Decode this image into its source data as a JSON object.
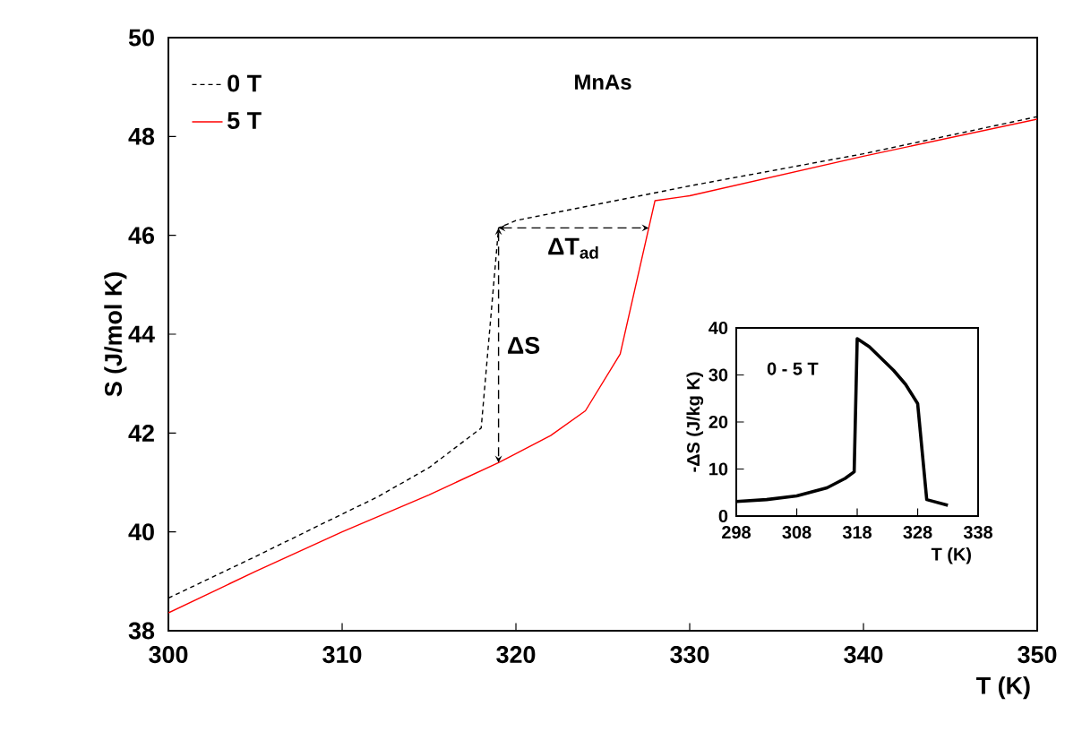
{
  "chart_data": [
    {
      "type": "line",
      "title": "MnAs",
      "xlabel": "T (K)",
      "ylabel": "S (J/mol K)",
      "xlim": [
        300,
        350
      ],
      "xticks": [
        300,
        310,
        320,
        330,
        340,
        350
      ],
      "ylim": [
        38,
        50
      ],
      "yticks": [
        38,
        40,
        42,
        44,
        46,
        48,
        50
      ],
      "legend": "top left",
      "grid": false,
      "marker": "none",
      "series": [
        {
          "name": "0 T",
          "color": "#000000",
          "line_style": "dashed",
          "x": [
            300,
            305,
            310,
            312,
            315,
            318,
            319,
            320,
            330,
            340,
            350
          ],
          "values": [
            38.66,
            39.5,
            40.36,
            40.7,
            41.3,
            42.1,
            46.15,
            46.3,
            47.0,
            47.65,
            48.4
          ]
        },
        {
          "name": "5 T",
          "color": "#ff0000",
          "line_style": "solid",
          "x": [
            300,
            305,
            310,
            315,
            319,
            322,
            324,
            326,
            327,
            328,
            330,
            340,
            350
          ],
          "values": [
            38.36,
            39.2,
            40.0,
            40.75,
            41.4,
            41.95,
            42.45,
            43.6,
            45.15,
            46.7,
            46.8,
            47.6,
            48.35
          ]
        }
      ],
      "annotations": [
        "ΔS",
        "ΔT$_{ad}$"
      ]
    },
    {
      "type": "line",
      "xlabel": "T (K)",
      "ylabel": "-ΔS (J/kg K)",
      "xlim": [
        298,
        338
      ],
      "xticks": [
        298,
        308,
        318,
        328,
        338
      ],
      "ylim": [
        0,
        40
      ],
      "yticks": [
        0,
        10,
        20,
        30,
        40
      ],
      "grid": false,
      "marker": "none",
      "series": [
        {
          "color": "#000000",
          "line_style": "solid",
          "x": [
            298,
            303,
            308,
            313,
            316,
            317.5,
            318,
            320,
            322,
            324,
            326,
            328,
            329.5,
            333
          ],
          "values": [
            3.1,
            3.5,
            4.3,
            6.0,
            8.0,
            9.4,
            37.7,
            36,
            33.5,
            31,
            28,
            23.9,
            3.5,
            2.3
          ]
        }
      ],
      "annotations": [
        "0 - 5 T"
      ]
    }
  ]
}
